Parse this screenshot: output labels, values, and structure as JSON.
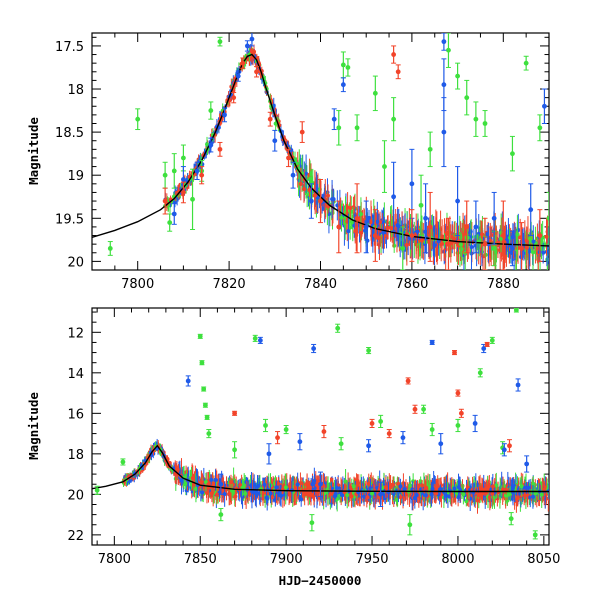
{
  "colors": {
    "background": "#ffffff",
    "axis": "#000000",
    "model_curve": "#000000",
    "series_green": "#3ee03e",
    "series_blue": "#1f5ae8",
    "series_red": "#f2442a"
  },
  "chart_data": [
    {
      "type": "scatter",
      "panel": "top",
      "title": "",
      "xlabel": "",
      "ylabel": "Magnitude",
      "xlim": [
        7790,
        7890
      ],
      "ylim": [
        20.1,
        17.35
      ],
      "y_inverted": true,
      "xticks": [
        7800,
        7820,
        7840,
        7860,
        7880
      ],
      "xtick_labels": [
        "7800",
        "7820",
        "7840",
        "7860",
        "7880"
      ],
      "yticks": [
        17.5,
        18,
        18.5,
        19,
        19.5,
        20
      ],
      "ytick_labels": [
        "17.5",
        "18",
        "18.5",
        "19",
        "19.5",
        "20"
      ],
      "grid": false,
      "legend": "none",
      "model_curve": {
        "description": "microlensing model, black line",
        "x": [
          7790,
          7795,
          7800,
          7805,
          7808,
          7811,
          7814,
          7817,
          7819,
          7821,
          7822,
          7823,
          7824,
          7825,
          7826,
          7827,
          7828,
          7830,
          7832,
          7835,
          7838,
          7842,
          7847,
          7852,
          7860,
          7870,
          7880,
          7890
        ],
        "y": [
          19.72,
          19.64,
          19.54,
          19.4,
          19.27,
          19.08,
          18.83,
          18.5,
          18.24,
          17.96,
          17.82,
          17.7,
          17.62,
          17.6,
          17.66,
          17.8,
          17.98,
          18.3,
          18.6,
          18.93,
          19.15,
          19.35,
          19.52,
          19.62,
          19.71,
          19.77,
          19.8,
          19.82
        ]
      },
      "series": [
        {
          "name": "",
          "color": "#3ee03e",
          "points": [
            {
              "x": 7794,
              "y": 19.85,
              "err": 0.08
            },
            {
              "x": 7800,
              "y": 18.35,
              "err": 0.12
            },
            {
              "x": 7806,
              "y": 19.0,
              "err": 0.15
            },
            {
              "x": 7807,
              "y": 19.55,
              "err": 0.1
            },
            {
              "x": 7808,
              "y": 18.95,
              "err": 0.2
            },
            {
              "x": 7810,
              "y": 18.8,
              "err": 0.15
            },
            {
              "x": 7812,
              "y": 19.28,
              "err": 0.35
            },
            {
              "x": 7814,
              "y": 18.95,
              "err": 0.12
            },
            {
              "x": 7816,
              "y": 18.25,
              "err": 0.1
            },
            {
              "x": 7818,
              "y": 17.45,
              "err": 0.05
            },
            {
              "x": 7844,
              "y": 18.45,
              "err": 0.2
            },
            {
              "x": 7845,
              "y": 17.72,
              "err": 0.15
            },
            {
              "x": 7846,
              "y": 17.75,
              "err": 0.1
            },
            {
              "x": 7848,
              "y": 18.45,
              "err": 0.15
            },
            {
              "x": 7852,
              "y": 18.05,
              "err": 0.2
            },
            {
              "x": 7854,
              "y": 18.9,
              "err": 0.3
            },
            {
              "x": 7856,
              "y": 18.35,
              "err": 0.25
            },
            {
              "x": 7858,
              "y": 19.85,
              "err": 0.25
            },
            {
              "x": 7862,
              "y": 19.35,
              "err": 0.35
            },
            {
              "x": 7864,
              "y": 18.7,
              "err": 0.2
            },
            {
              "x": 7868,
              "y": 17.55,
              "err": 0.2
            },
            {
              "x": 7870,
              "y": 17.85,
              "err": 0.15
            },
            {
              "x": 7872,
              "y": 18.1,
              "err": 0.2
            },
            {
              "x": 7874,
              "y": 18.35,
              "err": 0.2
            },
            {
              "x": 7876,
              "y": 18.4,
              "err": 0.15
            },
            {
              "x": 7878,
              "y": 19.85,
              "err": 0.2
            },
            {
              "x": 7882,
              "y": 18.75,
              "err": 0.2
            },
            {
              "x": 7885,
              "y": 17.7,
              "err": 0.08
            },
            {
              "x": 7888,
              "y": 18.45,
              "err": 0.15
            },
            {
              "x": 7890,
              "y": 19.5,
              "err": 0.3
            }
          ]
        },
        {
          "name": "",
          "color": "#1f5ae8",
          "points": [
            {
              "x": 7808,
              "y": 19.45,
              "err": 0.12
            },
            {
              "x": 7810,
              "y": 19.05,
              "err": 0.15
            },
            {
              "x": 7813,
              "y": 18.95,
              "err": 0.1
            },
            {
              "x": 7816,
              "y": 18.65,
              "err": 0.08
            },
            {
              "x": 7819,
              "y": 18.3,
              "err": 0.08
            },
            {
              "x": 7822,
              "y": 17.85,
              "err": 0.06
            },
            {
              "x": 7824,
              "y": 17.5,
              "err": 0.06
            },
            {
              "x": 7825,
              "y": 17.42,
              "err": 0.08
            },
            {
              "x": 7830,
              "y": 18.6,
              "err": 0.12
            },
            {
              "x": 7834,
              "y": 19.0,
              "err": 0.15
            },
            {
              "x": 7838,
              "y": 19.3,
              "err": 0.2
            },
            {
              "x": 7843,
              "y": 18.35,
              "err": 0.12
            },
            {
              "x": 7845,
              "y": 17.95,
              "err": 0.08
            },
            {
              "x": 7850,
              "y": 19.6,
              "err": 0.3
            },
            {
              "x": 7856,
              "y": 19.25,
              "err": 0.4
            },
            {
              "x": 7860,
              "y": 19.1,
              "err": 0.4
            },
            {
              "x": 7863,
              "y": 19.5,
              "err": 0.4
            },
            {
              "x": 7867,
              "y": 17.45,
              "err": 0.1
            },
            {
              "x": 7867,
              "y": 17.95,
              "err": 0.3
            },
            {
              "x": 7867,
              "y": 18.5,
              "err": 0.4
            },
            {
              "x": 7870,
              "y": 19.3,
              "err": 0.4
            },
            {
              "x": 7874,
              "y": 19.6,
              "err": 0.3
            },
            {
              "x": 7878,
              "y": 19.5,
              "err": 0.3
            },
            {
              "x": 7882,
              "y": 19.85,
              "err": 0.2
            },
            {
              "x": 7886,
              "y": 19.4,
              "err": 0.3
            },
            {
              "x": 7889,
              "y": 18.2,
              "err": 0.2
            }
          ]
        },
        {
          "name": "",
          "color": "#f2442a",
          "points": [
            {
              "x": 7806,
              "y": 19.3,
              "err": 0.15
            },
            {
              "x": 7810,
              "y": 19.2,
              "err": 0.12
            },
            {
              "x": 7814,
              "y": 19.0,
              "err": 0.1
            },
            {
              "x": 7818,
              "y": 18.7,
              "err": 0.08
            },
            {
              "x": 7821,
              "y": 18.1,
              "err": 0.06
            },
            {
              "x": 7823,
              "y": 17.7,
              "err": 0.06
            },
            {
              "x": 7826,
              "y": 17.8,
              "err": 0.06
            },
            {
              "x": 7829,
              "y": 18.35,
              "err": 0.08
            },
            {
              "x": 7833,
              "y": 18.8,
              "err": 0.1
            },
            {
              "x": 7836,
              "y": 18.5,
              "err": 0.12
            },
            {
              "x": 7840,
              "y": 19.3,
              "err": 0.25
            },
            {
              "x": 7844,
              "y": 19.6,
              "err": 0.3
            },
            {
              "x": 7848,
              "y": 19.5,
              "err": 0.4
            },
            {
              "x": 7852,
              "y": 19.7,
              "err": 0.3
            },
            {
              "x": 7856,
              "y": 17.6,
              "err": 0.1
            },
            {
              "x": 7857,
              "y": 17.8,
              "err": 0.08
            },
            {
              "x": 7860,
              "y": 19.7,
              "err": 0.3
            },
            {
              "x": 7864,
              "y": 19.6,
              "err": 0.4
            },
            {
              "x": 7868,
              "y": 19.8,
              "err": 0.3
            },
            {
              "x": 7872,
              "y": 19.6,
              "err": 0.3
            },
            {
              "x": 7876,
              "y": 19.8,
              "err": 0.3
            },
            {
              "x": 7880,
              "y": 19.7,
              "err": 0.4
            },
            {
              "x": 7884,
              "y": 19.85,
              "err": 0.3
            },
            {
              "x": 7888,
              "y": 19.7,
              "err": 0.3
            }
          ]
        }
      ]
    },
    {
      "type": "scatter",
      "panel": "bottom",
      "title": "",
      "xlabel": "HJD−2450000",
      "ylabel": "Magnitude",
      "xlim": [
        7787,
        8053
      ],
      "ylim": [
        22.5,
        10.8
      ],
      "y_inverted": true,
      "xticks": [
        7800,
        7850,
        7900,
        7950,
        8000,
        8050
      ],
      "xtick_labels": [
        "7800",
        "7850",
        "7900",
        "7950",
        "8000",
        "8050"
      ],
      "yticks": [
        12,
        14,
        16,
        18,
        20,
        22
      ],
      "ytick_labels": [
        "12",
        "14",
        "16",
        "18",
        "20",
        "22"
      ],
      "grid": false,
      "legend": "none",
      "model_curve": {
        "description": "microlensing model, black line",
        "x": [
          7787,
          7795,
          7805,
          7812,
          7818,
          7822,
          7825,
          7828,
          7832,
          7840,
          7850,
          7870,
          7900,
          7950,
          8000,
          8053
        ],
        "y": [
          19.72,
          19.6,
          19.38,
          19.0,
          18.45,
          17.9,
          17.6,
          17.95,
          18.6,
          19.2,
          19.55,
          19.75,
          19.82,
          19.85,
          19.86,
          19.86
        ]
      },
      "series": [
        {
          "name": "",
          "color": "#3ee03e",
          "points": [
            {
              "x": 7790,
              "y": 19.8,
              "err": 0.2
            },
            {
              "x": 7805,
              "y": 18.4,
              "err": 0.15
            },
            {
              "x": 7850,
              "y": 12.2,
              "err": 0.1
            },
            {
              "x": 7851,
              "y": 13.5,
              "err": 0.1
            },
            {
              "x": 7852,
              "y": 14.8,
              "err": 0.1
            },
            {
              "x": 7853,
              "y": 15.6,
              "err": 0.1
            },
            {
              "x": 7854,
              "y": 16.2,
              "err": 0.1
            },
            {
              "x": 7855,
              "y": 17.0,
              "err": 0.2
            },
            {
              "x": 7862,
              "y": 21.0,
              "err": 0.3
            },
            {
              "x": 7870,
              "y": 17.8,
              "err": 0.4
            },
            {
              "x": 7882,
              "y": 12.3,
              "err": 0.15
            },
            {
              "x": 7888,
              "y": 16.6,
              "err": 0.3
            },
            {
              "x": 7900,
              "y": 16.8,
              "err": 0.2
            },
            {
              "x": 7915,
              "y": 21.4,
              "err": 0.4
            },
            {
              "x": 7930,
              "y": 11.8,
              "err": 0.2
            },
            {
              "x": 7932,
              "y": 17.5,
              "err": 0.3
            },
            {
              "x": 7948,
              "y": 12.9,
              "err": 0.15
            },
            {
              "x": 7955,
              "y": 16.4,
              "err": 0.3
            },
            {
              "x": 7972,
              "y": 21.5,
              "err": 0.5
            },
            {
              "x": 7980,
              "y": 15.8,
              "err": 0.2
            },
            {
              "x": 7985,
              "y": 16.8,
              "err": 0.3
            },
            {
              "x": 8000,
              "y": 16.6,
              "err": 0.3
            },
            {
              "x": 8013,
              "y": 14.0,
              "err": 0.2
            },
            {
              "x": 8020,
              "y": 12.4,
              "err": 0.15
            },
            {
              "x": 8026,
              "y": 17.7,
              "err": 0.3
            },
            {
              "x": 8031,
              "y": 21.2,
              "err": 0.3
            },
            {
              "x": 8034,
              "y": 10.9,
              "err": 0.1
            },
            {
              "x": 8045,
              "y": 22.0,
              "err": 0.2
            }
          ]
        },
        {
          "name": "",
          "color": "#1f5ae8",
          "points": [
            {
              "x": 7843,
              "y": 14.4,
              "err": 0.25
            },
            {
              "x": 7862,
              "y": 19.5,
              "err": 0.5
            },
            {
              "x": 7885,
              "y": 12.4,
              "err": 0.15
            },
            {
              "x": 7890,
              "y": 18.0,
              "err": 0.5
            },
            {
              "x": 7908,
              "y": 17.4,
              "err": 0.4
            },
            {
              "x": 7916,
              "y": 12.8,
              "err": 0.2
            },
            {
              "x": 7920,
              "y": 19.5,
              "err": 0.6
            },
            {
              "x": 7948,
              "y": 17.6,
              "err": 0.3
            },
            {
              "x": 7955,
              "y": 20.0,
              "err": 0.6
            },
            {
              "x": 7968,
              "y": 17.2,
              "err": 0.3
            },
            {
              "x": 7985,
              "y": 12.5,
              "err": 0.1
            },
            {
              "x": 7990,
              "y": 17.5,
              "err": 0.5
            },
            {
              "x": 8010,
              "y": 16.5,
              "err": 0.4
            },
            {
              "x": 8015,
              "y": 12.8,
              "err": 0.2
            },
            {
              "x": 8027,
              "y": 17.8,
              "err": 0.3
            },
            {
              "x": 8035,
              "y": 14.6,
              "err": 0.3
            },
            {
              "x": 8040,
              "y": 18.5,
              "err": 0.4
            }
          ]
        },
        {
          "name": "",
          "color": "#f2442a",
          "points": [
            {
              "x": 7870,
              "y": 16.0,
              "err": 0.1
            },
            {
              "x": 7895,
              "y": 17.2,
              "err": 0.3
            },
            {
              "x": 7922,
              "y": 16.9,
              "err": 0.3
            },
            {
              "x": 7950,
              "y": 16.5,
              "err": 0.2
            },
            {
              "x": 7960,
              "y": 17.0,
              "err": 0.2
            },
            {
              "x": 7971,
              "y": 14.4,
              "err": 0.15
            },
            {
              "x": 7975,
              "y": 15.8,
              "err": 0.2
            },
            {
              "x": 7998,
              "y": 13.0,
              "err": 0.1
            },
            {
              "x": 8000,
              "y": 15.0,
              "err": 0.15
            },
            {
              "x": 8002,
              "y": 16.0,
              "err": 0.2
            },
            {
              "x": 8017,
              "y": 12.6,
              "err": 0.1
            },
            {
              "x": 8030,
              "y": 17.6,
              "err": 0.3
            }
          ]
        }
      ]
    }
  ]
}
